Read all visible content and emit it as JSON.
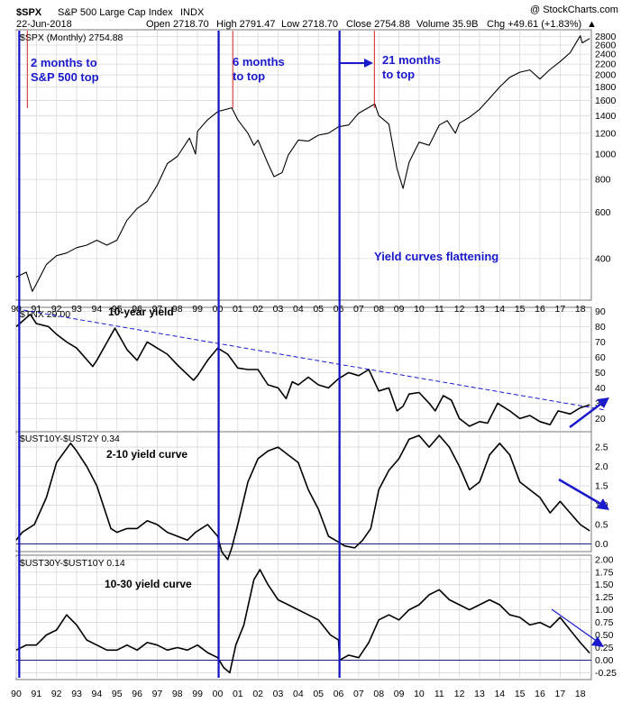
{
  "header": {
    "symbol": "$SPX",
    "name": "S&P 500 Large Cap Index",
    "exchange": "INDX",
    "date": "22-Jun-2018",
    "open": "Open 2718.70",
    "high": "High 2791.47",
    "low": "Low 2718.70",
    "close": "Close 2754.88",
    "volume": "Volume 35.9B",
    "chg": "Chg +49.61 (+1.83%)",
    "chg_arrow": "▲",
    "brand": "@ StockCharts.com"
  },
  "x_labels": [
    "90",
    "91",
    "92",
    "93",
    "94",
    "95",
    "96",
    "97",
    "98",
    "99",
    "00",
    "01",
    "02",
    "03",
    "04",
    "05",
    "06",
    "07",
    "08",
    "09",
    "10",
    "11",
    "12",
    "13",
    "14",
    "15",
    "16",
    "17",
    "18"
  ],
  "annotations": {
    "a1_line1": "2 months to",
    "a1_line2": "S&P 500 top",
    "a2_line1": "6 months",
    "a2_line2": "to top",
    "a3_line1": "21 months",
    "a3_line2": "to top",
    "main": "Yield curves flattening"
  },
  "colors": {
    "annotation": "#1a1acc",
    "vline": "#1414c8",
    "redline": "#d42020",
    "grid": "#d9d9d9",
    "series": "#000000"
  },
  "chart_data": [
    {
      "type": "line",
      "title": "$SPX (Monthly) 2754.88",
      "scale": "log",
      "ylim": [
        280,
        2950
      ],
      "yticks": [
        400,
        600,
        800,
        1000,
        1200,
        1400,
        1600,
        1800,
        2000,
        2200,
        2400,
        2600,
        2800
      ],
      "x": [
        1990.0,
        1990.5,
        1990.8,
        1991.0,
        1991.5,
        1992.0,
        1992.5,
        1993.0,
        1993.5,
        1994.0,
        1994.5,
        1995.0,
        1995.5,
        1996.0,
        1996.5,
        1997.0,
        1997.5,
        1998.0,
        1998.6,
        1998.9,
        1999.0,
        1999.5,
        2000.0,
        2000.7,
        2001.0,
        2001.5,
        2001.8,
        2002.0,
        2002.5,
        2002.8,
        2003.2,
        2003.5,
        2004.0,
        2004.5,
        2005.0,
        2005.5,
        2006.0,
        2006.5,
        2007.0,
        2007.8,
        2008.0,
        2008.5,
        2008.9,
        2009.2,
        2009.5,
        2010.0,
        2010.5,
        2011.0,
        2011.4,
        2011.8,
        2012.0,
        2012.5,
        2013.0,
        2013.5,
        2014.0,
        2014.5,
        2015.0,
        2015.5,
        2016.0,
        2016.5,
        2017.0,
        2017.5,
        2018.0,
        2018.1,
        2018.47
      ],
      "values": [
        340,
        355,
        300,
        320,
        380,
        410,
        420,
        440,
        450,
        470,
        450,
        470,
        560,
        620,
        660,
        760,
        920,
        980,
        1150,
        1000,
        1220,
        1350,
        1450,
        1500,
        1350,
        1200,
        1080,
        1130,
        920,
        820,
        850,
        990,
        1130,
        1120,
        1180,
        1200,
        1270,
        1290,
        1430,
        1550,
        1400,
        1300,
        880,
        740,
        930,
        1110,
        1080,
        1290,
        1340,
        1200,
        1310,
        1380,
        1480,
        1630,
        1800,
        1960,
        2050,
        2090,
        1930,
        2100,
        2250,
        2430,
        2820,
        2650,
        2754.88
      ]
    },
    {
      "type": "line",
      "title": "$TNX 29.00",
      "panel_label": "10-year yield",
      "ylim": [
        12,
        92
      ],
      "yticks": [
        20,
        30,
        40,
        50,
        60,
        70,
        80,
        90
      ],
      "x": [
        1990.0,
        1990.7,
        1991.0,
        1991.6,
        1992.0,
        1992.5,
        1993.0,
        1993.8,
        1994.0,
        1994.9,
        1995.5,
        1996.0,
        1996.5,
        1997.0,
        1997.5,
        1998.0,
        1998.8,
        1999.0,
        1999.5,
        2000.0,
        2000.5,
        2001.0,
        2001.5,
        2002.0,
        2002.5,
        2003.0,
        2003.4,
        2003.7,
        2004.0,
        2004.5,
        2005.0,
        2005.5,
        2006.0,
        2006.5,
        2007.0,
        2007.5,
        2008.0,
        2008.5,
        2008.9,
        2009.2,
        2009.5,
        2010.0,
        2010.5,
        2010.8,
        2011.2,
        2011.6,
        2012.0,
        2012.5,
        2013.0,
        2013.4,
        2013.9,
        2014.5,
        2015.0,
        2015.5,
        2016.0,
        2016.5,
        2016.9,
        2017.5,
        2018.0,
        2018.47
      ],
      "values": [
        80,
        88,
        82,
        80,
        75,
        70,
        66,
        54,
        58,
        79,
        65,
        58,
        70,
        66,
        62,
        55,
        45,
        48,
        58,
        66,
        62,
        53,
        52,
        52,
        42,
        40,
        33,
        44,
        42,
        47,
        42,
        40,
        46,
        50,
        48,
        52,
        38,
        40,
        25,
        28,
        36,
        37,
        30,
        25,
        35,
        32,
        20,
        15,
        18,
        17,
        30,
        25,
        20,
        22,
        18,
        16,
        25,
        23,
        27,
        29
      ]
    },
    {
      "type": "line",
      "title": "$UST10Y-$UST2Y 0.34",
      "panel_label": "2-10 yield curve",
      "ylim": [
        -0.15,
        2.85
      ],
      "yticks": [
        0.0,
        0.5,
        1.0,
        1.5,
        2.0,
        2.5
      ],
      "zero_line": 0,
      "x": [
        1990.0,
        1990.3,
        1990.9,
        1991.5,
        1992.0,
        1992.7,
        1993.0,
        1993.5,
        1994.0,
        1994.7,
        1995.0,
        1995.5,
        1996.0,
        1996.5,
        1997.0,
        1997.5,
        1998.0,
        1998.5,
        1998.9,
        1999.5,
        2000.0,
        2000.2,
        2000.5,
        2000.7,
        2001.0,
        2001.5,
        2002.0,
        2002.5,
        2003.0,
        2003.5,
        2004.0,
        2004.5,
        2005.0,
        2005.5,
        2006.0,
        2006.3,
        2006.8,
        2007.2,
        2007.6,
        2008.0,
        2008.5,
        2009.0,
        2009.5,
        2010.0,
        2010.5,
        2011.0,
        2011.5,
        2012.0,
        2012.5,
        2013.0,
        2013.5,
        2014.0,
        2014.5,
        2015.0,
        2015.5,
        2016.0,
        2016.5,
        2017.0,
        2017.5,
        2018.0,
        2018.47
      ],
      "values": [
        0.1,
        0.3,
        0.5,
        1.2,
        2.1,
        2.6,
        2.4,
        2.0,
        1.5,
        0.4,
        0.3,
        0.4,
        0.4,
        0.6,
        0.5,
        0.3,
        0.2,
        0.1,
        0.3,
        0.5,
        0.2,
        -0.2,
        -0.4,
        -0.1,
        0.5,
        1.6,
        2.2,
        2.4,
        2.5,
        2.3,
        2.1,
        1.4,
        0.9,
        0.2,
        0.05,
        -0.05,
        -0.1,
        0.1,
        0.4,
        1.4,
        1.9,
        2.2,
        2.7,
        2.8,
        2.5,
        2.8,
        2.5,
        2.0,
        1.4,
        1.6,
        2.3,
        2.6,
        2.3,
        1.6,
        1.4,
        1.2,
        0.8,
        1.1,
        0.8,
        0.5,
        0.34
      ]
    },
    {
      "type": "line",
      "title": "$UST30Y-$UST10Y 0.14",
      "panel_label": "10-30 yield curve",
      "ylim": [
        -0.35,
        2.05
      ],
      "yticks": [
        -0.25,
        0.0,
        0.25,
        0.5,
        0.75,
        1.0,
        1.25,
        1.5,
        1.75,
        2.0
      ],
      "zero_line": 0,
      "x": [
        1990.0,
        1990.5,
        1991.0,
        1991.5,
        1992.0,
        1992.5,
        1993.0,
        1993.5,
        1994.0,
        1994.5,
        1995.0,
        1995.5,
        1996.0,
        1996.5,
        1997.0,
        1997.5,
        1998.0,
        1998.5,
        1999.0,
        1999.5,
        2000.0,
        2000.3,
        2000.6,
        2000.9,
        2001.3,
        2001.8,
        2002.1,
        2002.5,
        2003.0,
        2003.5,
        2004.0,
        2004.5,
        2005.0,
        2005.6,
        2006.0,
        2006.05,
        2006.5,
        2007.0,
        2007.5,
        2008.0,
        2008.5,
        2009.0,
        2009.5,
        2010.0,
        2010.5,
        2011.0,
        2011.5,
        2012.0,
        2012.5,
        2013.0,
        2013.5,
        2014.0,
        2014.5,
        2015.0,
        2015.5,
        2016.0,
        2016.5,
        2017.0,
        2017.5,
        2018.0,
        2018.47
      ],
      "values": [
        0.2,
        0.3,
        0.3,
        0.5,
        0.6,
        0.9,
        0.7,
        0.4,
        0.3,
        0.2,
        0.2,
        0.3,
        0.2,
        0.35,
        0.3,
        0.2,
        0.25,
        0.2,
        0.3,
        0.15,
        0.05,
        -0.15,
        -0.25,
        0.3,
        0.7,
        1.6,
        1.8,
        1.5,
        1.2,
        1.1,
        1.0,
        0.9,
        0.8,
        0.5,
        0.4,
        0.0,
        0.1,
        0.05,
        0.35,
        0.8,
        0.9,
        0.8,
        1.0,
        1.1,
        1.3,
        1.4,
        1.2,
        1.1,
        1.0,
        1.1,
        1.2,
        1.1,
        0.9,
        0.85,
        0.7,
        0.75,
        0.65,
        0.85,
        0.6,
        0.35,
        0.14
      ]
    }
  ]
}
